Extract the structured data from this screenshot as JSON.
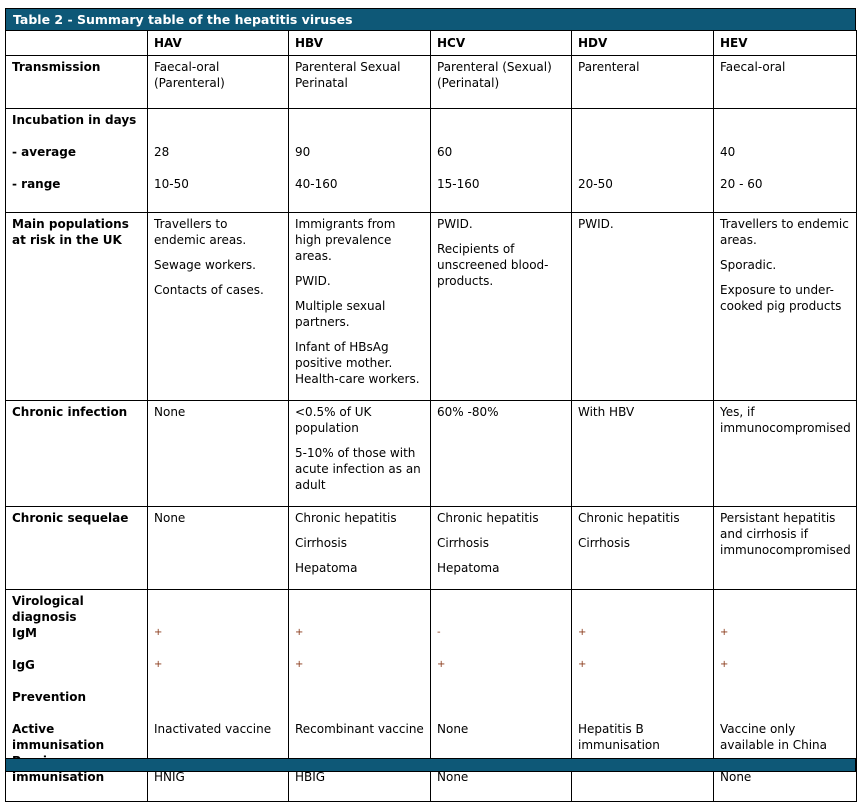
{
  "title": "Table 2 - Summary table of the hepatitis viruses",
  "columns": [
    "",
    "HAV",
    "HBV",
    "HCV",
    "HDV",
    "HEV"
  ],
  "transmission": {
    "label": "Transmission",
    "values": [
      "Faecal-oral (Parenteral)",
      "Parenteral Sexual Perinatal",
      "Parenteral (Sexual) (Perinatal)",
      "Parenteral",
      "Faecal-oral"
    ]
  },
  "incubation": {
    "label": "Incubation in days",
    "average_label": "- average",
    "range_label": "- range",
    "average": [
      "28",
      "90",
      "60",
      "",
      "40"
    ],
    "range": [
      "10-50",
      "40-160",
      "15-160",
      "20-50",
      "20 - 60"
    ]
  },
  "populations": {
    "label": "Main populations at risk in the UK",
    "values": [
      [
        "Travellers to endemic areas.",
        "Sewage workers.",
        "Contacts of cases."
      ],
      [
        "Immigrants from high prevalence areas.",
        "PWID.",
        "Multiple sexual partners.",
        "Infant of HBsAg positive mother. Health-care workers."
      ],
      [
        "PWID.",
        "Recipients of unscreened blood-products."
      ],
      [
        "PWID."
      ],
      [
        "Travellers to endemic areas.",
        "Sporadic.",
        "Exposure to under-cooked pig products"
      ]
    ]
  },
  "chronic_infection": {
    "label": "Chronic infection",
    "values": [
      [
        "None"
      ],
      [
        "<0.5% of UK population",
        "5-10% of those with acute infection as an adult"
      ],
      [
        "60% -80%"
      ],
      [
        "With HBV"
      ],
      [
        "Yes, if immunocompromised"
      ]
    ]
  },
  "chronic_sequelae": {
    "label": "Chronic sequelae",
    "values": [
      [
        "None"
      ],
      [
        "Chronic hepatitis",
        "Cirrhosis",
        "Hepatoma"
      ],
      [
        "Chronic hepatitis",
        "Cirrhosis",
        "Hepatoma"
      ],
      [
        "Chronic hepatitis",
        "Cirrhosis"
      ],
      [
        "Persistant hepatitis and cirrhosis if immunocompromised"
      ]
    ]
  },
  "virological": {
    "label": "Virological diagnosis",
    "igm_label": "IgM",
    "igg_label": "IgG",
    "igm": [
      "+",
      "+",
      "-",
      "+",
      "+"
    ],
    "igg": [
      "+",
      "+",
      "+",
      "+",
      "+"
    ]
  },
  "prevention": {
    "label": "Prevention",
    "active_label": "Active immunisation",
    "passive_label": "Passive immunisation",
    "active": [
      "Inactivated vaccine",
      "Recombinant vaccine",
      "None",
      "Hepatitis B immunisation",
      "Vaccine only available in China"
    ],
    "passive": [
      "HNIG",
      "HBIG",
      "None",
      "",
      "None"
    ]
  }
}
